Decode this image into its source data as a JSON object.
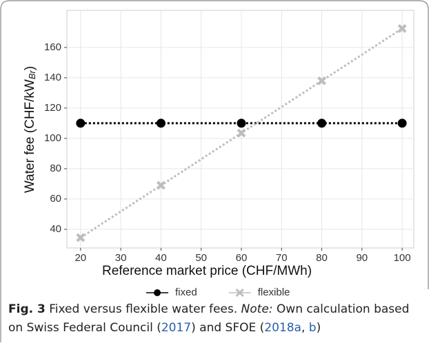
{
  "chart_data": {
    "type": "line",
    "xlabel": "Reference market price (CHF/MWh)",
    "ylabel": {
      "main": "Water fee (CHF/kW",
      "sub": "Br",
      "end": ")"
    },
    "x": [
      20,
      40,
      60,
      80,
      100
    ],
    "series": [
      {
        "name": "fixed",
        "color": "#000000",
        "marker": "circle",
        "values": [
          110,
          110,
          110,
          110,
          110
        ]
      },
      {
        "name": "flexible",
        "color": "#bdbdbd",
        "marker": "x",
        "values": [
          34.5,
          69,
          103.5,
          138,
          172.5
        ]
      }
    ],
    "xlim": [
      16.6,
      102.9
    ],
    "xticks": [
      20,
      30,
      40,
      50,
      60,
      70,
      80,
      90,
      100
    ],
    "ylim": [
      27.7,
      184.5
    ],
    "yticks": [
      40,
      60,
      80,
      100,
      120,
      140,
      160
    ],
    "grid": true,
    "legend": "bottom"
  },
  "caption": [
    {
      "text": "Fig. 3",
      "style": "lab"
    },
    {
      "text": " Fixed versus flexible water fees. ",
      "style": ""
    },
    {
      "text": "Note:",
      "style": "it"
    },
    {
      "text": " Own calculation based on Swiss Federal Council (",
      "style": ""
    },
    {
      "text": "2017",
      "style": "link"
    },
    {
      "text": ") and SFOE (",
      "style": ""
    },
    {
      "text": "2018a",
      "style": "link"
    },
    {
      "text": ", ",
      "style": ""
    },
    {
      "text": "b",
      "style": "link"
    },
    {
      "text": ")",
      "style": ""
    }
  ]
}
